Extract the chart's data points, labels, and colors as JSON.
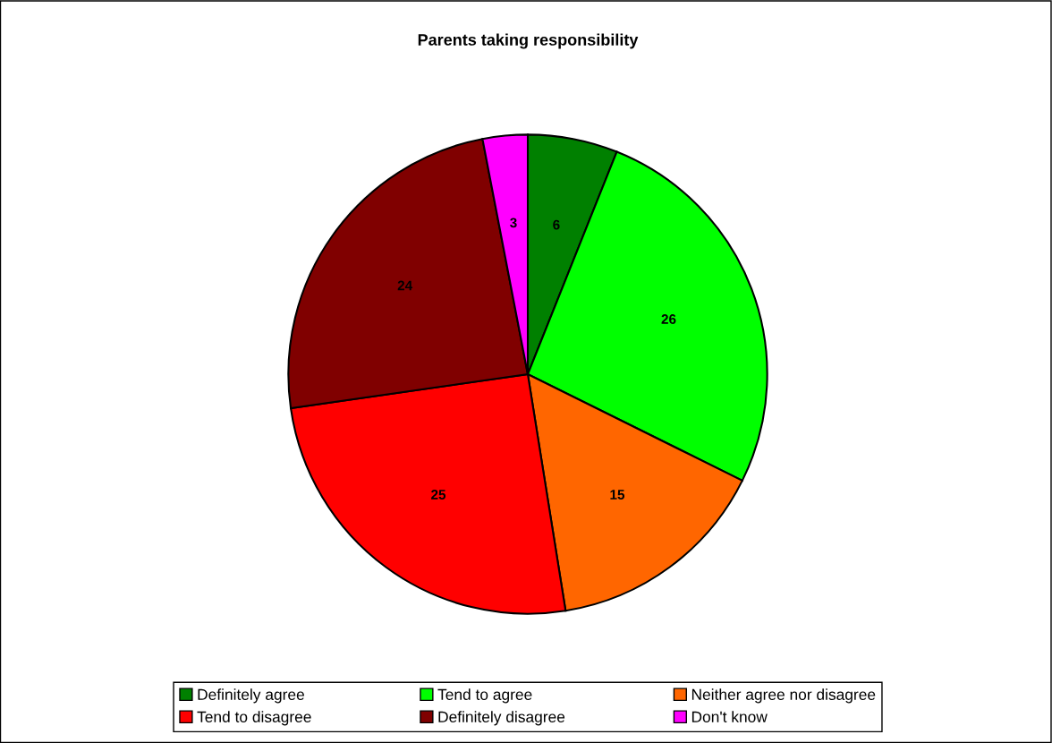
{
  "chart_data": {
    "type": "pie",
    "title": "Parents taking responsibility",
    "categories": [
      "Definitely agree",
      "Tend to agree",
      "Neither agree nor disagree",
      "Tend to disagree",
      "Definitely disagree",
      "Don't know"
    ],
    "values": [
      6,
      26,
      15,
      25,
      24,
      3
    ],
    "colors": [
      "#008000",
      "#00ff00",
      "#ff6600",
      "#ff0000",
      "#800000",
      "#ff00ff"
    ],
    "data_labels": true,
    "legend": "bottom"
  }
}
